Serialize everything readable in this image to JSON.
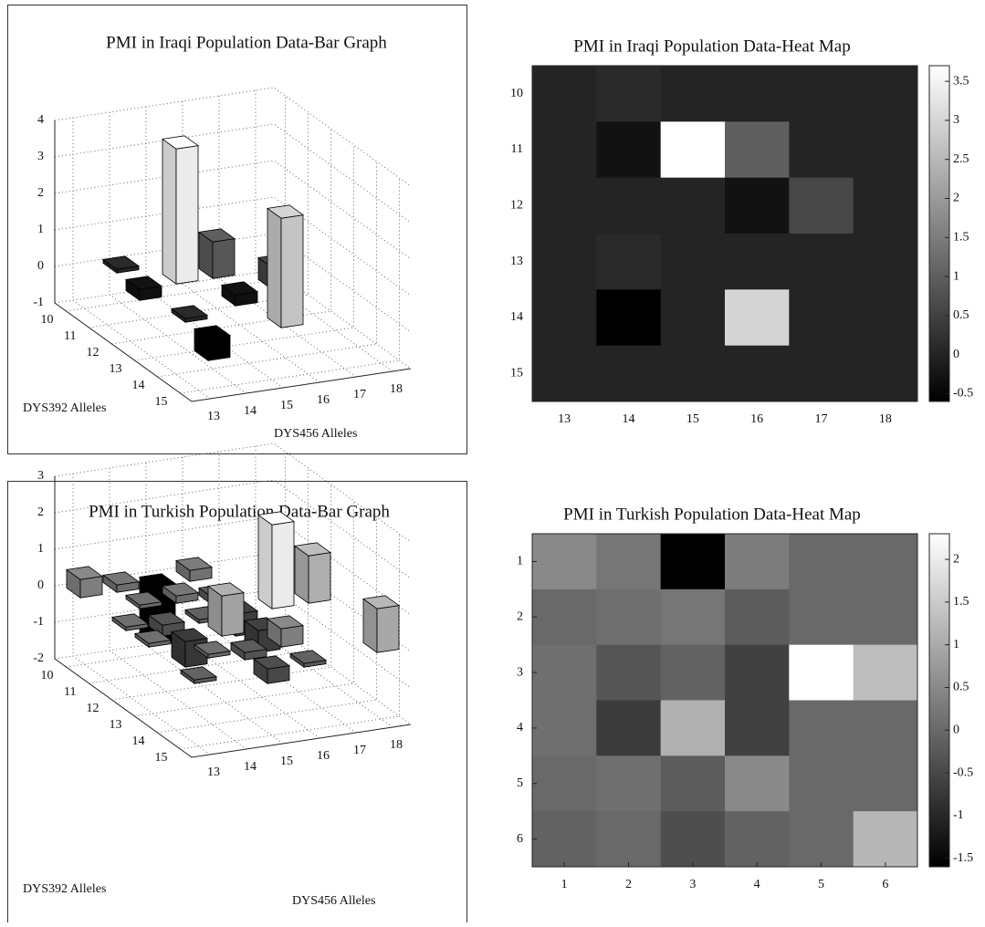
{
  "chart_data": [
    {
      "type": "bar3d",
      "title": "PMI in Iraqi Population Data-Bar Graph",
      "xlabel": "DYS456 Alleles",
      "ylabel": "DYS392 Alleles",
      "xticks": [
        13,
        14,
        15,
        16,
        17,
        18
      ],
      "yticks": [
        10,
        11,
        12,
        13,
        14,
        15
      ],
      "zlim": [
        -1,
        4
      ],
      "zticks": [
        -1,
        0,
        1,
        2,
        3,
        4
      ],
      "clim": [
        -0.6,
        3.7
      ],
      "values": [
        [
          0,
          0.1,
          0,
          0,
          0,
          0
        ],
        [
          0,
          -0.3,
          3.7,
          1.0,
          0,
          0
        ],
        [
          0,
          0,
          0,
          -0.3,
          0.6,
          0
        ],
        [
          0,
          0.1,
          0,
          0,
          0,
          0
        ],
        [
          0,
          -0.6,
          0,
          3.0,
          0,
          0
        ],
        [
          0,
          0,
          0,
          0,
          0,
          0
        ]
      ]
    },
    {
      "type": "heatmap",
      "title": "PMI in Iraqi Population Data-Heat Map",
      "xticks": [
        13,
        14,
        15,
        16,
        17,
        18
      ],
      "yticks": [
        10,
        11,
        12,
        13,
        14,
        15
      ],
      "clim": [
        -0.6,
        3.7
      ],
      "cticks": [
        -0.5,
        0,
        0.5,
        1,
        1.5,
        2,
        2.5,
        3,
        3.5
      ],
      "values": [
        [
          0,
          0.1,
          0,
          0,
          0,
          0
        ],
        [
          0,
          -0.3,
          3.7,
          1.0,
          0,
          0
        ],
        [
          0,
          0,
          0,
          -0.3,
          0.6,
          0
        ],
        [
          0,
          0.1,
          0,
          0,
          0,
          0
        ],
        [
          0,
          -0.6,
          0,
          3.0,
          0,
          0
        ],
        [
          0,
          0,
          0,
          0,
          0,
          0
        ]
      ]
    },
    {
      "type": "bar3d",
      "title": "PMI in Turkish Population Data-Bar Graph",
      "xlabel": "DYS456 Alleles",
      "ylabel": "DYS392 Alleles",
      "xticks": [
        13,
        14,
        15,
        16,
        17,
        18
      ],
      "yticks": [
        10,
        11,
        12,
        13,
        14,
        15
      ],
      "zlim": [
        -2,
        3
      ],
      "zticks": [
        -2,
        -1,
        0,
        1,
        2,
        3
      ],
      "clim": [
        -1.6,
        2.3
      ],
      "values": [
        [
          0.5,
          0.2,
          -1.6,
          0.3,
          0,
          0
        ],
        [
          0,
          0.1,
          0.2,
          -0.2,
          0,
          0
        ],
        [
          0.1,
          -0.3,
          -0.1,
          -0.6,
          2.3,
          1.3
        ],
        [
          0.1,
          -0.7,
          1.1,
          -0.6,
          0,
          0
        ],
        [
          0,
          0.1,
          -0.2,
          0.5,
          0,
          0
        ],
        [
          -0.1,
          0,
          -0.4,
          -0.1,
          0,
          1.2
        ]
      ]
    },
    {
      "type": "heatmap",
      "title": "PMI in Turkish Population Data-Heat Map",
      "xticks": [
        1,
        2,
        3,
        4,
        5,
        6
      ],
      "yticks": [
        1,
        2,
        3,
        4,
        5,
        6
      ],
      "clim": [
        -1.6,
        2.3
      ],
      "cticks": [
        -1.5,
        -1,
        -0.5,
        0,
        0.5,
        1,
        1.5,
        2
      ],
      "values": [
        [
          0.5,
          0.2,
          -1.6,
          0.3,
          0,
          0
        ],
        [
          0,
          0.1,
          0.2,
          -0.2,
          0,
          0
        ],
        [
          0.1,
          -0.3,
          -0.1,
          -0.6,
          2.3,
          1.3
        ],
        [
          0.1,
          -0.7,
          1.1,
          -0.6,
          0,
          0
        ],
        [
          0,
          0.1,
          -0.2,
          0.5,
          0,
          0
        ],
        [
          -0.1,
          0,
          -0.4,
          -0.1,
          0,
          1.2
        ]
      ]
    }
  ]
}
